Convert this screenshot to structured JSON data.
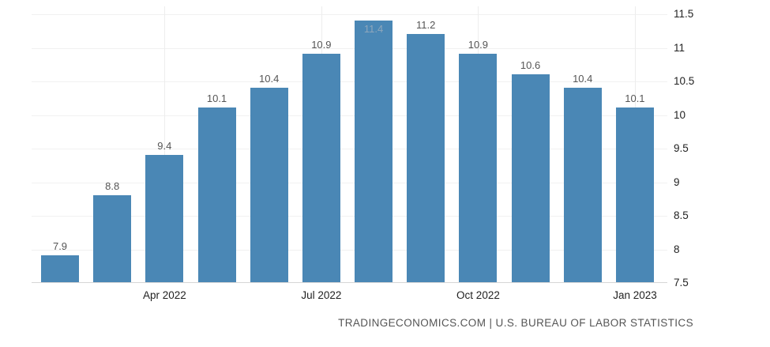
{
  "chart_data": {
    "type": "bar",
    "values": [
      7.9,
      8.8,
      9.4,
      10.1,
      10.4,
      10.9,
      11.4,
      11.2,
      10.9,
      10.6,
      10.4,
      10.1
    ],
    "bar_labels": [
      "7.9",
      "8.8",
      "9.4",
      "10.1",
      "10.4",
      "10.9",
      "11.4",
      "11.2",
      "10.9",
      "10.6",
      "10.4",
      "10.1"
    ],
    "x_ticks": [
      {
        "label": "Apr 2022",
        "bar_index": 2
      },
      {
        "label": "Jul 2022",
        "bar_index": 5
      },
      {
        "label": "Oct 2022",
        "bar_index": 8
      },
      {
        "label": "Jan 2023",
        "bar_index": 11
      }
    ],
    "y_ticks": [
      "7.5",
      "8",
      "8.5",
      "9",
      "9.5",
      "10",
      "10.5",
      "11",
      "11.5"
    ],
    "ylim": [
      7.5,
      11.5
    ],
    "grid": true,
    "legend": "none",
    "title": "",
    "xlabel": "",
    "ylabel": "",
    "bar_color": "#4a87b5",
    "label_color": "#555555",
    "label_color_on_bar": "#8ea7bc"
  },
  "footer": {
    "credit": "TRADINGECONOMICS.COM | U.S. BUREAU OF LABOR STATISTICS"
  }
}
